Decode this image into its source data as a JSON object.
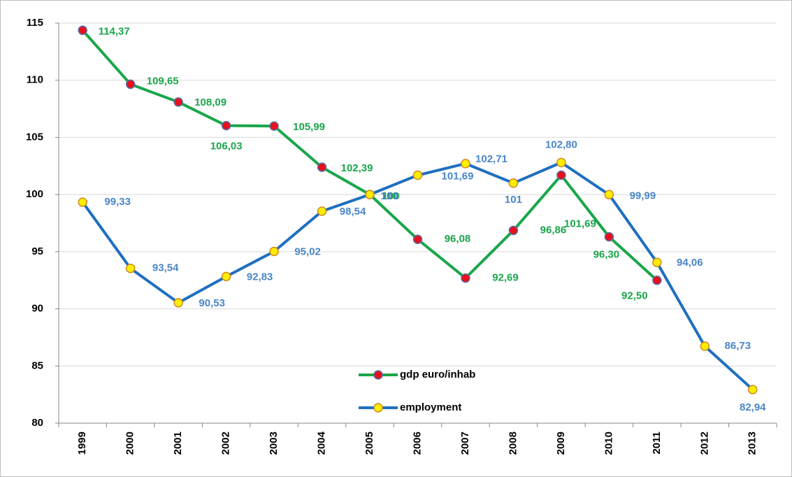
{
  "chart_data": {
    "type": "line",
    "categories": [
      "1999",
      "2000",
      "2001",
      "2002",
      "2003",
      "2004",
      "2005",
      "2006",
      "2007",
      "2008",
      "2009",
      "2010",
      "2011",
      "2012",
      "2013"
    ],
    "series": [
      {
        "name": "gdp euro/inhab",
        "color": "#1aa64a",
        "marker_color": "#e8101a",
        "values": [
          114.37,
          109.65,
          108.09,
          106.03,
          105.99,
          102.39,
          100,
          96.08,
          92.69,
          96.86,
          101.69,
          96.3,
          92.5,
          null,
          null
        ],
        "value_labels": [
          "114,37",
          "109,65",
          "108,09",
          "106,03",
          "105,99",
          "102,39",
          "100",
          "96,08",
          "92,69",
          "96,86",
          "101,69",
          "96,30",
          "92,50",
          null,
          null
        ]
      },
      {
        "name": "employment",
        "color": "#1f6fbf",
        "marker_color": "#ffee00",
        "values": [
          99.33,
          93.54,
          90.53,
          92.83,
          95.02,
          98.54,
          100,
          101.69,
          102.71,
          101,
          102.8,
          99.99,
          94.06,
          86.73,
          82.94
        ],
        "value_labels": [
          "99,33",
          "93,54",
          "90,53",
          "92,83",
          "95,02",
          "98,54",
          "100",
          "101,69",
          "102,71",
          "101",
          "102,80",
          "99,99",
          "94,06",
          "86,73",
          "82,94"
        ]
      }
    ],
    "ylim": [
      80,
      115
    ],
    "yticks": [
      80,
      85,
      90,
      95,
      100,
      105,
      110,
      115
    ],
    "grid": true,
    "legend": "bottom-center"
  }
}
